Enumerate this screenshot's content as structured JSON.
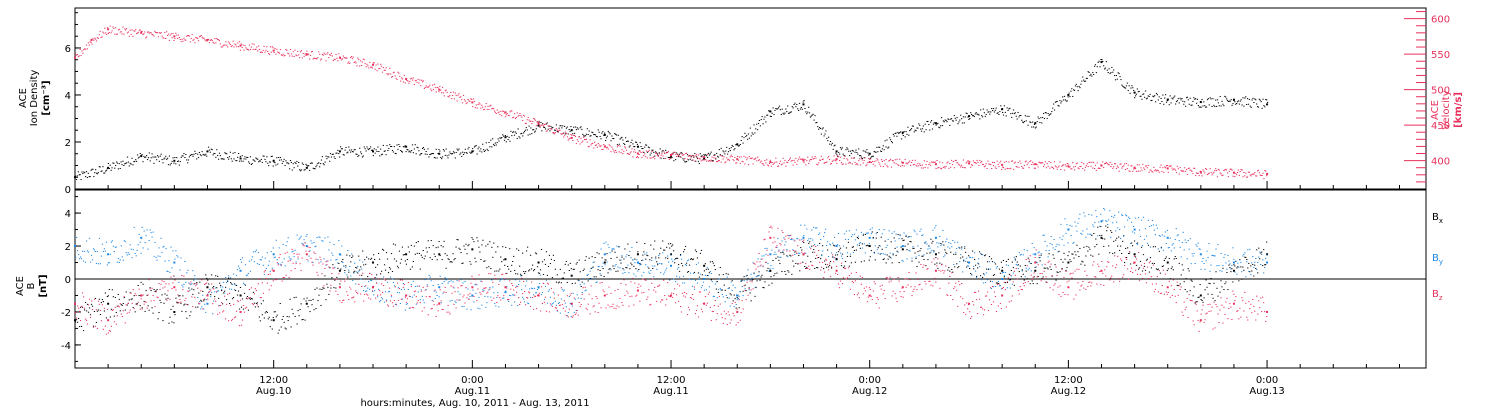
{
  "chart_data": [
    {
      "type": "scatter",
      "panel": "top",
      "ylabel_left": [
        "ACE",
        "Ion Density"
      ],
      "ylabel_left_unit": "[cm⁻³]",
      "ylabel_right": [
        "ACE",
        "Velocity"
      ],
      "ylabel_right_unit": "[km/s]",
      "ylim_left": [
        0,
        7.7
      ],
      "ylim_right": [
        360,
        615
      ],
      "yticks_left": [
        "0",
        "2",
        "4",
        "6"
      ],
      "yticks_right": [
        "400",
        "450",
        "500",
        "550",
        "600"
      ],
      "x_unit": "hours since 2011-08-10 00:00",
      "xlim": [
        0,
        81.6
      ],
      "series": [
        {
          "name": "Ion Density",
          "axis": "left",
          "color": "#000000",
          "x": [
            0,
            2,
            4,
            6,
            8,
            10,
            12,
            14,
            16,
            18,
            20,
            22,
            24,
            26,
            28,
            30,
            32,
            34,
            36,
            38,
            40,
            42,
            44,
            46,
            48,
            50,
            52,
            54,
            56,
            58,
            60,
            62,
            64,
            66,
            68,
            70,
            72
          ],
          "y": [
            0.5,
            0.9,
            1.4,
            1.2,
            1.6,
            1.3,
            1.2,
            0.9,
            1.6,
            1.6,
            1.8,
            1.5,
            1.6,
            2.2,
            2.7,
            2.5,
            2.3,
            1.8,
            1.4,
            1.3,
            1.9,
            3.3,
            3.6,
            1.6,
            1.5,
            2.4,
            2.8,
            3.1,
            3.4,
            2.8,
            4.0,
            5.4,
            4.1,
            3.8,
            3.7,
            3.8,
            3.6
          ]
        },
        {
          "name": "Velocity",
          "axis": "right",
          "color": "#e8305c",
          "x": [
            0,
            1,
            2,
            4,
            6,
            8,
            10,
            12,
            14,
            16,
            18,
            20,
            22,
            24,
            26,
            28,
            30,
            32,
            34,
            36,
            38,
            40,
            42,
            44,
            46,
            48,
            50,
            52,
            54,
            56,
            58,
            60,
            62,
            64,
            66,
            68,
            70,
            72
          ],
          "y": [
            545,
            570,
            585,
            580,
            575,
            570,
            562,
            555,
            550,
            545,
            535,
            515,
            500,
            482,
            468,
            452,
            432,
            420,
            410,
            408,
            405,
            402,
            398,
            400,
            402,
            398,
            397,
            395,
            396,
            394,
            395,
            392,
            393,
            390,
            389,
            384,
            383,
            381
          ]
        }
      ]
    },
    {
      "type": "scatter",
      "panel": "bottom",
      "ylabel": [
        "ACE",
        "B"
      ],
      "ylabel_unit": "[nT]",
      "ylim": [
        -5.4,
        5.4
      ],
      "yticks": [
        "-4",
        "-2",
        "0",
        "2",
        "4"
      ],
      "xticks": [
        {
          "x": 12,
          "time": "12:00",
          "date": "Aug.10"
        },
        {
          "x": 24,
          "time": "0:00",
          "date": "Aug.11"
        },
        {
          "x": 36,
          "time": "12:00",
          "date": "Aug.11"
        },
        {
          "x": 48,
          "time": "0:00",
          "date": "Aug.12"
        },
        {
          "x": 60,
          "time": "12:00",
          "date": "Aug.12"
        },
        {
          "x": 72,
          "time": "0:00",
          "date": "Aug.13"
        }
      ],
      "xlabel": "hours:minutes, Aug. 10, 2011 - Aug. 13, 2011",
      "x_unit": "hours since 2011-08-10 00:00",
      "xlim": [
        0,
        81.6
      ],
      "zero_line": true,
      "legend": [
        {
          "base": "B",
          "sub": "x",
          "color": "#000000"
        },
        {
          "base": "B",
          "sub": "y",
          "color": "#1e88e5"
        },
        {
          "base": "B",
          "sub": "z",
          "color": "#e8305c"
        }
      ],
      "series": [
        {
          "name": "Bx",
          "color": "#000000",
          "x": [
            0,
            2,
            4,
            6,
            8,
            10,
            12,
            14,
            16,
            18,
            20,
            22,
            24,
            26,
            28,
            30,
            32,
            34,
            36,
            38,
            40,
            42,
            44,
            46,
            48,
            50,
            52,
            54,
            56,
            58,
            60,
            62,
            64,
            66,
            68,
            70,
            72
          ],
          "y": [
            -2.5,
            -1.5,
            -1.0,
            -2.0,
            -0.5,
            -1.0,
            -2.5,
            -1.5,
            0.5,
            1.0,
            1.5,
            1.5,
            1.8,
            1.2,
            1.0,
            0.2,
            1.0,
            1.5,
            1.5,
            0.8,
            -1.0,
            0.5,
            1.5,
            1.2,
            2.0,
            1.8,
            1.5,
            1.0,
            0.5,
            0.5,
            1.0,
            2.5,
            1.5,
            1.0,
            -1.0,
            0.5,
            1.5
          ]
        },
        {
          "name": "By",
          "color": "#1e88e5",
          "x": [
            0,
            2,
            4,
            6,
            8,
            10,
            12,
            14,
            16,
            18,
            20,
            22,
            24,
            26,
            28,
            30,
            32,
            34,
            36,
            38,
            40,
            42,
            44,
            46,
            48,
            50,
            52,
            54,
            56,
            58,
            60,
            62,
            64,
            66,
            68,
            70,
            72
          ],
          "y": [
            2.0,
            1.5,
            2.5,
            1.0,
            -1.5,
            0.5,
            1.5,
            2.0,
            1.5,
            -0.5,
            -1.0,
            -0.5,
            -1.0,
            -0.8,
            -0.5,
            -1.5,
            1.5,
            1.0,
            0.8,
            0.0,
            -1.0,
            1.5,
            2.5,
            2.0,
            2.5,
            2.0,
            2.5,
            1.0,
            0.0,
            1.5,
            3.0,
            3.5,
            3.0,
            2.5,
            1.5,
            1.0,
            1.0
          ]
        },
        {
          "name": "Bz",
          "color": "#e8305c",
          "x": [
            0,
            2,
            4,
            6,
            8,
            10,
            12,
            14,
            16,
            18,
            20,
            22,
            24,
            26,
            28,
            30,
            32,
            34,
            36,
            38,
            40,
            42,
            44,
            46,
            48,
            50,
            52,
            54,
            56,
            58,
            60,
            62,
            64,
            66,
            68,
            70,
            72
          ],
          "y": [
            -1.5,
            -2.5,
            -1.0,
            -0.5,
            -1.0,
            -2.0,
            0.5,
            1.5,
            -0.5,
            -0.5,
            -1.0,
            -1.5,
            -0.5,
            -0.5,
            -1.0,
            -1.5,
            -1.0,
            -0.7,
            -1.0,
            -1.5,
            -2.0,
            2.5,
            1.5,
            0.5,
            -1.0,
            -0.5,
            0.5,
            -1.5,
            -1.0,
            1.0,
            -0.5,
            0.5,
            1.0,
            -0.5,
            -2.5,
            -1.5,
            -2.0
          ]
        }
      ]
    }
  ]
}
